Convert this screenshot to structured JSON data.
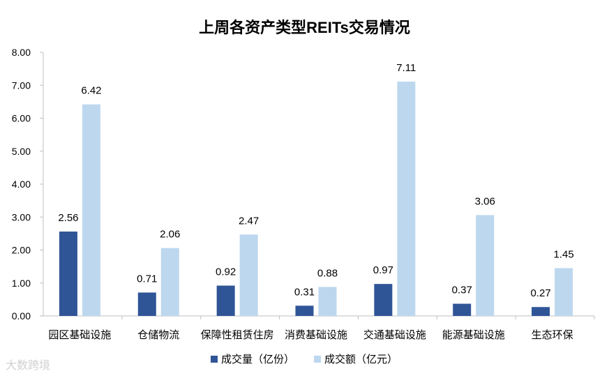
{
  "chart_data": {
    "type": "bar",
    "title": "上周各资产类型REITs交易情况",
    "categories": [
      "园区基础设施",
      "仓储物流",
      "保障性租赁住房",
      "消费基础设施",
      "交通基础设施",
      "能源基础设施",
      "生态环保"
    ],
    "series": [
      {
        "name": "成交量（亿份）",
        "values": [
          2.56,
          0.71,
          0.92,
          0.31,
          0.97,
          0.37,
          0.27
        ],
        "color": "#2f5597"
      },
      {
        "name": "成交额（亿元）",
        "values": [
          6.42,
          2.06,
          2.47,
          0.88,
          7.11,
          3.06,
          1.45
        ],
        "color": "#bdd7ee"
      }
    ],
    "y_ticks": [
      "0.00",
      "1.00",
      "2.00",
      "3.00",
      "4.00",
      "5.00",
      "6.00",
      "7.00",
      "8.00"
    ],
    "ylim": [
      0,
      8
    ],
    "legend_position": "bottom",
    "grid": false
  },
  "watermark": "大数跨境"
}
